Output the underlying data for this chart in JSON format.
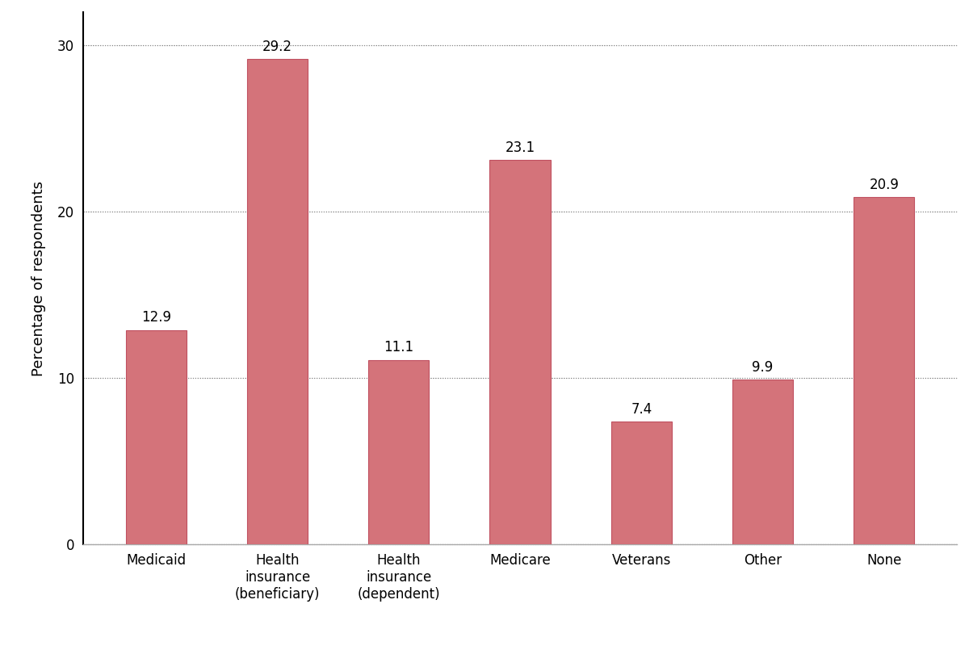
{
  "categories": [
    "Medicaid",
    "Health\ninsurance\n(beneficiary)",
    "Health\ninsurance\n(dependent)",
    "Medicare",
    "Veterans",
    "Other",
    "None"
  ],
  "values": [
    12.9,
    29.2,
    11.1,
    23.1,
    7.4,
    9.9,
    20.9
  ],
  "bar_color": "#d4737a",
  "bar_edgecolor": "#c05060",
  "ylabel": "Percentage of respondents",
  "ylim": [
    0,
    32
  ],
  "yticks": [
    0,
    10,
    20,
    30
  ],
  "grid_color": "#888888",
  "label_fontsize": 13,
  "tick_fontsize": 12,
  "value_fontsize": 12,
  "bar_width": 0.5,
  "figure_facecolor": "#ffffff"
}
